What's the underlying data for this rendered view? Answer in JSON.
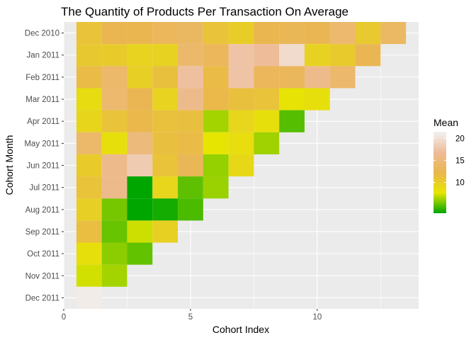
{
  "chart_data": {
    "type": "heatmap",
    "title": "The Quantity of Products Per Transaction On Average",
    "xlabel": "Cohort Index",
    "ylabel": "Cohort Month",
    "xlim": [
      0,
      14
    ],
    "x_ticks": [
      0,
      5,
      10
    ],
    "cohorts": [
      "Dec 2010",
      "Jan 2011",
      "Feb 2011",
      "Mar 2011",
      "Apr 2011",
      "May 2011",
      "Jun 2011",
      "Jul 2011",
      "Aug 2011",
      "Sep 2011",
      "Oct 2011",
      "Nov 2011",
      "Dec 2011"
    ],
    "cohort_index": [
      1,
      2,
      3,
      4,
      5,
      6,
      7,
      8,
      9,
      10,
      11,
      12,
      13
    ],
    "values": [
      [
        11.0,
        12.5,
        12.3,
        13.0,
        13.5,
        11.0,
        10.0,
        12.3,
        12.8,
        12.6,
        14.2,
        10.4,
        13.6
      ],
      [
        10.5,
        10.2,
        9.5,
        9.6,
        14.0,
        13.0,
        17.5,
        16.8,
        19.5,
        9.6,
        10.3,
        12.6
      ],
      [
        11.8,
        14.0,
        9.8,
        11.3,
        17.2,
        11.8,
        17.5,
        13.0,
        13.1,
        16.0,
        14.1
      ],
      [
        8.7,
        14.2,
        12.6,
        9.5,
        16.0,
        12.0,
        11.3,
        11.0,
        7.9,
        8.3
      ],
      [
        9.3,
        11.0,
        12.1,
        11.2,
        11.4,
        6.3,
        9.2,
        8.3,
        4.7
      ],
      [
        14.0,
        8.3,
        15.0,
        11.4,
        11.8,
        7.7,
        8.5,
        6.2
      ],
      [
        10.2,
        16.0,
        18.2,
        11.0,
        12.8,
        6.0,
        9.0
      ],
      [
        11.0,
        16.0,
        3.0,
        9.2,
        4.9,
        6.1
      ],
      [
        9.8,
        5.4,
        3.0,
        3.4,
        4.5
      ],
      [
        11.5,
        5.1,
        7.1,
        9.7
      ],
      [
        8.3,
        5.8,
        5.0
      ],
      [
        7.2,
        6.3
      ],
      [
        21.0
      ]
    ],
    "legend": {
      "title": "Mean",
      "ticks": [
        10,
        15,
        20
      ],
      "range": [
        3,
        21.5
      ],
      "colors": [
        "#00a600",
        "#e6e600",
        "#eab64e",
        "#eebc99",
        "#f2f2f2"
      ]
    },
    "grid": true
  }
}
